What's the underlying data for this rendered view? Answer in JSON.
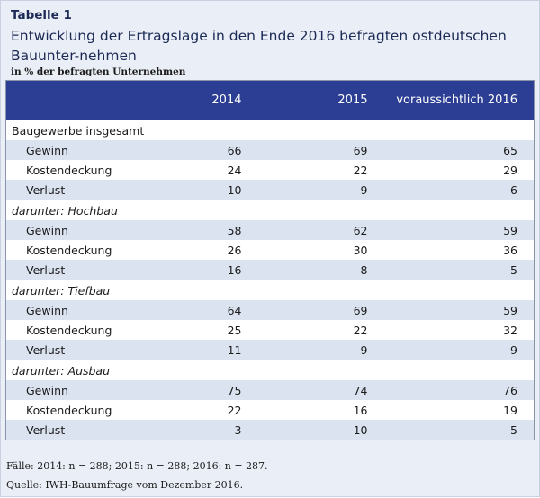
{
  "table_label": "Tabelle 1",
  "title": "Entwicklung der Ertragslage in den Ende 2016 befragten ostdeutschen Bauunter-nehmen",
  "subtitle": "in % der befragten Unternehmen",
  "columns": [
    "",
    "2014",
    "2015",
    "voraussichtlich 2016"
  ],
  "sections": [
    {
      "prefix": "",
      "name": "Baugewerbe insgesamt",
      "rows": [
        {
          "label": "Gewinn",
          "values": [
            "66",
            "69",
            "65"
          ]
        },
        {
          "label": "Kostendeckung",
          "values": [
            "24",
            "22",
            "29"
          ]
        },
        {
          "label": "Verlust",
          "values": [
            "10",
            "9",
            "6"
          ]
        }
      ]
    },
    {
      "prefix": "darunter:",
      "name": "Hochbau",
      "rows": [
        {
          "label": "Gewinn",
          "values": [
            "58",
            "62",
            "59"
          ]
        },
        {
          "label": "Kostendeckung",
          "values": [
            "26",
            "30",
            "36"
          ]
        },
        {
          "label": "Verlust",
          "values": [
            "16",
            "8",
            "5"
          ]
        }
      ]
    },
    {
      "prefix": "darunter:",
      "name": "Tiefbau",
      "rows": [
        {
          "label": "Gewinn",
          "values": [
            "64",
            "69",
            "59"
          ]
        },
        {
          "label": "Kostendeckung",
          "values": [
            "25",
            "22",
            "32"
          ]
        },
        {
          "label": "Verlust",
          "values": [
            "11",
            "9",
            "9"
          ]
        }
      ]
    },
    {
      "prefix": "darunter:",
      "name": "Ausbau",
      "rows": [
        {
          "label": "Gewinn",
          "values": [
            "75",
            "74",
            "76"
          ]
        },
        {
          "label": "Kostendeckung",
          "values": [
            "22",
            "16",
            "19"
          ]
        },
        {
          "label": "Verlust",
          "values": [
            "3",
            "10",
            "5"
          ]
        }
      ]
    }
  ],
  "footnote_cases": "Fälle: 2014: n = 288; 2015: n = 288; 2016: n = 287.",
  "footnote_source": "Quelle: IWH-Bauumfrage vom Dezember 2016.",
  "colors": {
    "header_bg": "#2c3e93",
    "title": "#1c2a55",
    "panel_bg": "#e9eef7",
    "row_alt": "#dbe3f0"
  }
}
